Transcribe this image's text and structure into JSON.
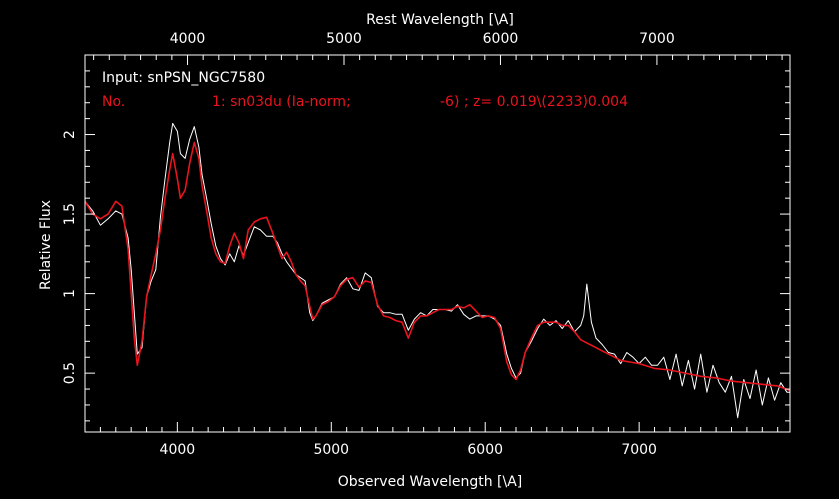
{
  "chart_data": {
    "type": "line",
    "xlabel_bottom": "Observed Wavelength [\\A]",
    "xlabel_top": "Rest Wavelength [\\A]",
    "ylabel": "Relative Flux",
    "xlim": [
      3400,
      7980
    ],
    "ylim": [
      0.13,
      2.5
    ],
    "x_ticks_bottom": [
      4000,
      5000,
      6000,
      7000
    ],
    "x_ticks_top": [
      4000,
      5000,
      6000,
      7000
    ],
    "y_ticks": [
      0.5,
      1,
      1.5,
      2
    ],
    "y_tick_labels": [
      "0.5",
      "1",
      "1.5",
      "2"
    ],
    "annotations": {
      "input": "Input: snPSN_NGC7580",
      "no_label": "No.",
      "match": "1: sn03du (Ia-norm;",
      "phase": "-6) ; z= 0.019\\(2233)0.004"
    },
    "colors": {
      "observed": "#ffffff",
      "template": "#e8141e",
      "background": "#000000",
      "axes": "#ffffff"
    },
    "series": [
      {
        "key": "observed",
        "x": [
          3400,
          3450,
          3500,
          3550,
          3600,
          3640,
          3680,
          3700,
          3720,
          3740,
          3770,
          3800,
          3830,
          3860,
          3890,
          3920,
          3950,
          3970,
          4000,
          4020,
          4050,
          4080,
          4110,
          4140,
          4160,
          4190,
          4220,
          4250,
          4280,
          4310,
          4340,
          4370,
          4400,
          4430,
          4460,
          4500,
          4540,
          4580,
          4620,
          4650,
          4680,
          4710,
          4740,
          4770,
          4800,
          4830,
          4860,
          4880,
          4900,
          4940,
          4980,
          5020,
          5060,
          5100,
          5140,
          5180,
          5220,
          5260,
          5300,
          5340,
          5380,
          5420,
          5460,
          5500,
          5540,
          5580,
          5620,
          5660,
          5700,
          5740,
          5780,
          5820,
          5860,
          5900,
          5940,
          5980,
          6020,
          6060,
          6100,
          6140,
          6170,
          6200,
          6230,
          6260,
          6300,
          6340,
          6380,
          6420,
          6460,
          6500,
          6540,
          6580,
          6620,
          6640,
          6660,
          6690,
          6720,
          6760,
          6800,
          6840,
          6880,
          6920,
          6960,
          7000,
          7040,
          7080,
          7120,
          7160,
          7200,
          7240,
          7280,
          7320,
          7360,
          7400,
          7440,
          7480,
          7520,
          7560,
          7600,
          7640,
          7680,
          7720,
          7760,
          7800,
          7840,
          7880,
          7920,
          7960,
          7980
        ],
        "y": [
          1.58,
          1.52,
          1.43,
          1.47,
          1.52,
          1.5,
          1.35,
          1.15,
          0.88,
          0.62,
          0.66,
          0.98,
          1.08,
          1.15,
          1.48,
          1.72,
          1.95,
          2.07,
          2.02,
          1.88,
          1.85,
          1.97,
          2.05,
          1.92,
          1.75,
          1.6,
          1.44,
          1.3,
          1.22,
          1.18,
          1.25,
          1.2,
          1.3,
          1.24,
          1.32,
          1.42,
          1.4,
          1.36,
          1.36,
          1.32,
          1.25,
          1.2,
          1.16,
          1.12,
          1.1,
          1.08,
          0.88,
          0.83,
          0.86,
          0.94,
          0.96,
          0.98,
          1.06,
          1.1,
          1.03,
          1.02,
          1.13,
          1.1,
          0.92,
          0.88,
          0.88,
          0.87,
          0.87,
          0.77,
          0.84,
          0.88,
          0.86,
          0.9,
          0.9,
          0.9,
          0.89,
          0.93,
          0.87,
          0.84,
          0.86,
          0.86,
          0.86,
          0.84,
          0.8,
          0.62,
          0.53,
          0.47,
          0.5,
          0.63,
          0.7,
          0.78,
          0.84,
          0.8,
          0.83,
          0.78,
          0.83,
          0.76,
          0.8,
          0.86,
          1.06,
          0.82,
          0.72,
          0.68,
          0.63,
          0.62,
          0.56,
          0.63,
          0.6,
          0.56,
          0.6,
          0.55,
          0.55,
          0.6,
          0.46,
          0.62,
          0.42,
          0.58,
          0.4,
          0.62,
          0.38,
          0.55,
          0.44,
          0.38,
          0.48,
          0.22,
          0.46,
          0.34,
          0.52,
          0.3,
          0.47,
          0.33,
          0.44,
          0.38,
          0.38
        ]
      },
      {
        "key": "template",
        "x": [
          3400,
          3450,
          3500,
          3550,
          3600,
          3640,
          3680,
          3700,
          3720,
          3740,
          3770,
          3800,
          3830,
          3860,
          3890,
          3920,
          3950,
          3970,
          4000,
          4020,
          4050,
          4080,
          4110,
          4140,
          4160,
          4190,
          4220,
          4250,
          4280,
          4310,
          4340,
          4370,
          4400,
          4430,
          4460,
          4500,
          4540,
          4580,
          4620,
          4650,
          4680,
          4710,
          4740,
          4770,
          4800,
          4830,
          4860,
          4880,
          4900,
          4940,
          4980,
          5020,
          5060,
          5100,
          5140,
          5180,
          5220,
          5260,
          5300,
          5340,
          5380,
          5420,
          5460,
          5500,
          5540,
          5580,
          5620,
          5660,
          5700,
          5740,
          5780,
          5820,
          5860,
          5900,
          5940,
          5980,
          6020,
          6060,
          6100,
          6140,
          6170,
          6200,
          6230,
          6260,
          6300,
          6340,
          6380,
          6420,
          6460,
          6500,
          6540,
          6580,
          6620,
          6660,
          6700,
          6760,
          6820,
          6880,
          6940,
          7000,
          7100,
          7200,
          7300,
          7400,
          7500,
          7600,
          7700,
          7800,
          7900,
          7980
        ],
        "y": [
          1.58,
          1.5,
          1.47,
          1.5,
          1.58,
          1.55,
          1.28,
          1.0,
          0.72,
          0.55,
          0.7,
          0.98,
          1.12,
          1.25,
          1.4,
          1.6,
          1.78,
          1.88,
          1.72,
          1.6,
          1.65,
          1.82,
          1.95,
          1.85,
          1.68,
          1.52,
          1.35,
          1.25,
          1.2,
          1.19,
          1.3,
          1.38,
          1.32,
          1.22,
          1.4,
          1.45,
          1.47,
          1.48,
          1.38,
          1.3,
          1.22,
          1.26,
          1.2,
          1.12,
          1.08,
          1.05,
          0.92,
          0.84,
          0.86,
          0.93,
          0.95,
          0.98,
          1.05,
          1.09,
          1.1,
          1.04,
          1.08,
          1.07,
          0.93,
          0.86,
          0.85,
          0.83,
          0.82,
          0.72,
          0.82,
          0.86,
          0.86,
          0.88,
          0.9,
          0.9,
          0.9,
          0.92,
          0.91,
          0.93,
          0.89,
          0.85,
          0.86,
          0.85,
          0.78,
          0.57,
          0.49,
          0.46,
          0.52,
          0.63,
          0.72,
          0.8,
          0.82,
          0.82,
          0.82,
          0.8,
          0.8,
          0.76,
          0.71,
          0.69,
          0.67,
          0.64,
          0.61,
          0.58,
          0.57,
          0.56,
          0.53,
          0.52,
          0.5,
          0.48,
          0.47,
          0.45,
          0.44,
          0.43,
          0.42,
          0.39
        ]
      }
    ]
  }
}
